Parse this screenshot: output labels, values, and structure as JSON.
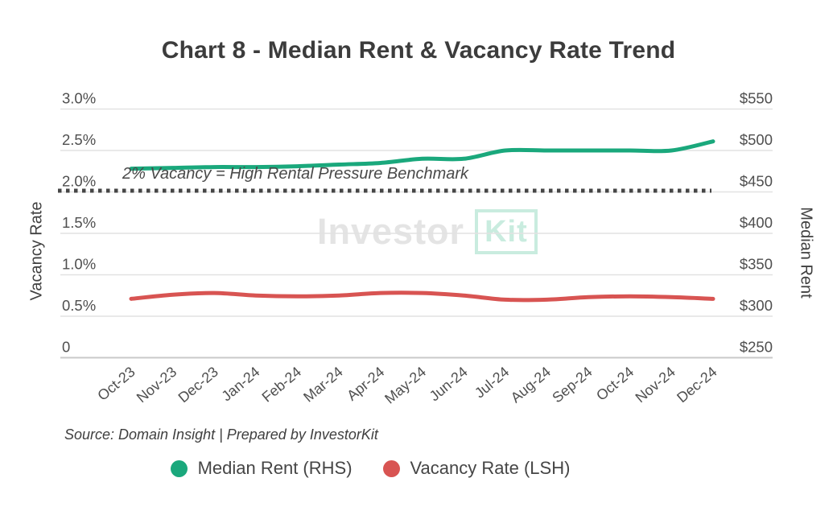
{
  "header": {
    "title": "Chart 8 - Median Rent & Vacancy Rate Trend"
  },
  "watermark": {
    "part1": "Investor",
    "part2": "Kit",
    "gray_color": "#e4e4e4",
    "teal_color": "#c9ecdf"
  },
  "source_note": "Source: Domain Insight | Prepared by InvestorKit",
  "chart_data": {
    "type": "line",
    "title": "Chart 8 - Median Rent & Vacancy Rate Trend",
    "categories": [
      "Oct-23",
      "Nov-23",
      "Dec-23",
      "Jan-24",
      "Feb-24",
      "Mar-24",
      "Apr-24",
      "May-24",
      "Jun-24",
      "Jul-24",
      "Aug-24",
      "Sep-24",
      "Oct-24",
      "Nov-24",
      "Dec-24"
    ],
    "series": [
      {
        "name": "Median Rent (RHS)",
        "axis": "right",
        "color": "#1aa87c",
        "values": [
          478,
          479,
          480,
          480,
          481,
          483,
          485,
          490,
          490,
          500,
          500,
          500,
          500,
          500,
          511
        ]
      },
      {
        "name": "Vacancy Rate (LSH)",
        "axis": "left",
        "color": "#d85452",
        "values": [
          0.71,
          0.76,
          0.78,
          0.75,
          0.74,
          0.75,
          0.78,
          0.78,
          0.75,
          0.7,
          0.7,
          0.73,
          0.74,
          0.73,
          0.71
        ]
      }
    ],
    "left_axis": {
      "title": "Vacancy Rate",
      "min": 0,
      "max": 3.0,
      "unit": "%",
      "tick_labels": [
        "3.0%",
        "2.5%",
        "2.0%",
        "1.5%",
        "1.0%",
        "0.5%",
        "0"
      ]
    },
    "right_axis": {
      "title": "Median Rent",
      "min": 250,
      "max": 550,
      "unit": "$",
      "tick_labels": [
        "$550",
        "$500",
        "$450",
        "$400",
        "$350",
        "$300",
        "$250"
      ]
    },
    "benchmark": {
      "value": 2.0,
      "label": "2% Vacancy = High Rental Pressure Benchmark",
      "color": "#464646",
      "style": "dotted"
    },
    "grid": {
      "on": true,
      "color": "#e2e2e2",
      "baseline_color": "#c9c9c9",
      "tick_color": "#4f4f4f"
    },
    "legend_position": "bottom"
  }
}
